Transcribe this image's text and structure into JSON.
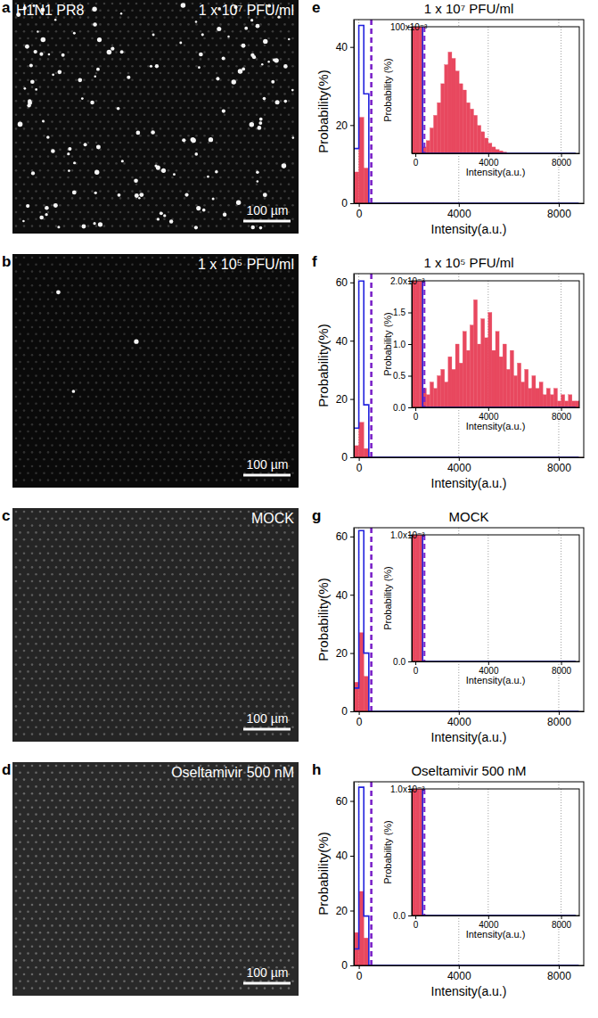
{
  "images": [
    {
      "panel": "a",
      "caption_left": "H1N1 PR8",
      "caption_right": "1 x 10⁷ PFU/ml",
      "scale_bar": "100 µm"
    },
    {
      "panel": "b",
      "caption_right": "1 x 10⁵ PFU/ml",
      "scale_bar": "100 µm"
    },
    {
      "panel": "c",
      "caption_right": "MOCK",
      "scale_bar": "100 µm"
    },
    {
      "panel": "d",
      "caption_right": "Oseltamivir 500 nM",
      "scale_bar": "100 µm"
    }
  ],
  "chart_data": [
    {
      "type": "histogram",
      "panel": "e",
      "title": "1 x 10⁷ PFU/ml",
      "x_label": "Intensity(a.u.)",
      "y_label": "Probability(%)",
      "bins": [
        -200,
        0,
        200,
        400,
        600,
        800,
        1000,
        1200,
        1400,
        1600,
        1800,
        2000,
        2200,
        2400,
        2600,
        2800,
        3000,
        3200,
        3400,
        3600,
        3800,
        4000,
        4200,
        4400,
        4600,
        4800,
        5000,
        5200,
        5400,
        5600,
        5800,
        6000,
        6200,
        6400,
        6600,
        6800,
        7000,
        7200,
        7400,
        7600,
        7800,
        8000,
        8200,
        8400,
        8600,
        8800,
        9000
      ],
      "series": [
        {
          "type": "bar",
          "color": "#e8485f",
          "values": [
            8,
            22,
            9,
            0.005,
            0.01,
            0.02,
            0.03,
            0.04,
            0.055,
            0.07,
            0.08,
            0.075,
            0.065,
            0.055,
            0.05,
            0.04,
            0.035,
            0.03,
            0.022,
            0.017,
            0.012,
            0.008,
            0.005,
            0.003,
            0.002,
            0.001,
            0,
            0,
            0,
            0,
            0,
            0,
            0,
            0,
            0,
            0,
            0,
            0,
            0,
            0,
            0,
            0,
            0,
            0,
            0,
            0
          ]
        },
        {
          "type": "line",
          "color": "#2222dd",
          "values": [
            14,
            45.5,
            28,
            0,
            0,
            0,
            0,
            0,
            0,
            0,
            0,
            0,
            0,
            0,
            0,
            0,
            0,
            0,
            0,
            0,
            0,
            0,
            0,
            0,
            0,
            0,
            0,
            0,
            0,
            0,
            0,
            0,
            0,
            0,
            0,
            0,
            0,
            0,
            0,
            0,
            0,
            0,
            0,
            0,
            0,
            0
          ]
        }
      ],
      "xlim": [
        -200,
        9000
      ],
      "ylim": [
        0,
        47
      ],
      "xticks": [
        0,
        4000,
        8000
      ],
      "yticks": [
        0,
        20,
        40
      ],
      "grid": true,
      "threshold": {
        "value": 500,
        "color": "#7a22c8",
        "line_style": "dashed"
      },
      "inset": {
        "x_label": "Intensity(a.u.)",
        "y_label": "Probability (%)",
        "xlim": [
          -200,
          9000
        ],
        "ylim": [
          0,
          0.1
        ],
        "xticks": [
          0,
          4000,
          8000
        ],
        "yticks": [
          {
            "value": 0.1,
            "label": "100x10⁻³"
          }
        ]
      }
    },
    {
      "type": "histogram",
      "panel": "f",
      "title": "1 x 10⁵ PFU/ml",
      "x_label": "Intensity(a.u.)",
      "y_label": "Probability(%)",
      "bins": [
        -200,
        0,
        200,
        400,
        600,
        800,
        1000,
        1200,
        1400,
        1600,
        1800,
        2000,
        2200,
        2400,
        2600,
        2800,
        3000,
        3200,
        3400,
        3600,
        3800,
        4000,
        4200,
        4400,
        4600,
        4800,
        5000,
        5200,
        5400,
        5600,
        5800,
        6000,
        6200,
        6400,
        6600,
        6800,
        7000,
        7200,
        7400,
        7600,
        7800,
        8000,
        8200,
        8400,
        8600,
        8800,
        9000
      ],
      "series": [
        {
          "type": "bar",
          "color": "#e8485f",
          "values": [
            4,
            12,
            3,
            0.0003,
            0.0002,
            0.0004,
            0.0003,
            0.0005,
            0.0006,
            0.0004,
            0.0008,
            0.0006,
            0.001,
            0.0007,
            0.0012,
            0.0009,
            0.0013,
            0.0017,
            0.001,
            0.0014,
            0.0011,
            0.0015,
            0.0009,
            0.0012,
            0.0008,
            0.001,
            0.0006,
            0.0009,
            0.0005,
            0.0007,
            0.0004,
            0.0006,
            0.0003,
            0.0005,
            0.0003,
            0.0004,
            0.0002,
            0.0003,
            0.0002,
            0.0003,
            0.0001,
            0.0002,
            0.0001,
            0.0002,
            0.0001,
            0.0001
          ]
        },
        {
          "type": "line",
          "color": "#2222dd",
          "values": [
            10,
            60.5,
            18,
            0,
            0,
            0,
            0,
            0,
            0,
            0,
            0,
            0,
            0,
            0,
            0,
            0,
            0,
            0,
            0,
            0,
            0,
            0,
            0,
            0,
            0,
            0,
            0,
            0,
            0,
            0,
            0,
            0,
            0,
            0,
            0,
            0,
            0,
            0,
            0,
            0,
            0,
            0,
            0,
            0,
            0,
            0
          ]
        }
      ],
      "xlim": [
        -200,
        9000
      ],
      "ylim": [
        0,
        63
      ],
      "xticks": [
        0,
        4000,
        8000
      ],
      "yticks": [
        0,
        20,
        40,
        60
      ],
      "grid": true,
      "threshold": {
        "value": 500,
        "color": "#7a22c8",
        "line_style": "dashed"
      },
      "inset": {
        "x_label": "Intensity(a.u.)",
        "y_label": "Probability (%)",
        "xlim": [
          -200,
          9000
        ],
        "ylim": [
          0,
          0.002
        ],
        "xticks": [
          0,
          4000,
          8000
        ],
        "yticks": [
          {
            "value": 0,
            "label": "0.0"
          },
          {
            "value": 0.0005,
            "label": "0.5"
          },
          {
            "value": 0.001,
            "label": "1.0"
          },
          {
            "value": 0.0015,
            "label": "1.5"
          },
          {
            "value": 0.002,
            "label": "2.0x10⁻³"
          }
        ]
      }
    },
    {
      "type": "histogram",
      "panel": "g",
      "title": "MOCK",
      "x_label": "Intensity(a.u.)",
      "y_label": "Probability(%)",
      "bins": [
        -200,
        0,
        200,
        400,
        600,
        800,
        1000,
        1200,
        1400,
        1600,
        1800,
        2000,
        2200,
        2400,
        2600,
        2800,
        3000,
        3200,
        3400,
        3600,
        3800,
        4000,
        4200,
        4400,
        4600,
        4800,
        5000,
        5200,
        5400,
        5600,
        5800,
        6000,
        6200,
        6400,
        6600,
        6800,
        7000,
        7200,
        7400,
        7600,
        7800,
        8000,
        8200,
        8400,
        8600,
        8800,
        9000
      ],
      "series": [
        {
          "type": "bar",
          "color": "#e8485f",
          "values": [
            10,
            27,
            12,
            0,
            0,
            0,
            0,
            0,
            0,
            0,
            0,
            0,
            0,
            0,
            0,
            0,
            0,
            0,
            0,
            0,
            0,
            0,
            0,
            0,
            0,
            0,
            0,
            0,
            0,
            0,
            0,
            0,
            0,
            0,
            0,
            0,
            0,
            0,
            0,
            0,
            0,
            0,
            0,
            0,
            0,
            0
          ]
        },
        {
          "type": "line",
          "color": "#2222dd",
          "values": [
            8,
            62,
            20,
            0,
            0,
            0,
            0,
            0,
            0,
            0,
            0,
            0,
            0,
            0,
            0,
            0,
            0,
            0,
            0,
            0,
            0,
            0,
            0,
            0,
            0,
            0,
            0,
            0,
            0,
            0,
            0,
            0,
            0,
            0,
            0,
            0,
            0,
            0,
            0,
            0,
            0,
            0,
            0,
            0,
            0,
            0
          ]
        }
      ],
      "xlim": [
        -200,
        9000
      ],
      "ylim": [
        0,
        63
      ],
      "xticks": [
        0,
        4000,
        8000
      ],
      "yticks": [
        0,
        20,
        40,
        60
      ],
      "grid": true,
      "threshold": {
        "value": 500,
        "color": "#7a22c8",
        "line_style": "dashed"
      },
      "inset": {
        "x_label": "Intensity(a.u.)",
        "y_label": "Probability (%)",
        "xlim": [
          -200,
          9000
        ],
        "ylim": [
          0,
          0.001
        ],
        "xticks": [
          0,
          4000,
          8000
        ],
        "yticks": [
          {
            "value": 0,
            "label": "0.0"
          },
          {
            "value": 0.001,
            "label": "1.0x10⁻³"
          }
        ]
      }
    },
    {
      "type": "histogram",
      "panel": "h",
      "title": "Oseltamivir 500 nM",
      "x_label": "Intensity(a.u.)",
      "y_label": "Probability(%)",
      "bins": [
        -200,
        0,
        200,
        400,
        600,
        800,
        1000,
        1200,
        1400,
        1600,
        1800,
        2000,
        2200,
        2400,
        2600,
        2800,
        3000,
        3200,
        3400,
        3600,
        3800,
        4000,
        4200,
        4400,
        4600,
        4800,
        5000,
        5200,
        5400,
        5600,
        5800,
        6000,
        6200,
        6400,
        6600,
        6800,
        7000,
        7200,
        7400,
        7600,
        7800,
        8000,
        8200,
        8400,
        8600,
        8800,
        9000
      ],
      "series": [
        {
          "type": "bar",
          "color": "#e8485f",
          "values": [
            12,
            27,
            10,
            0,
            0,
            0,
            0,
            0,
            0,
            0,
            0,
            0,
            0,
            0,
            0,
            0,
            0,
            0,
            0,
            0,
            0,
            0,
            0,
            0,
            0,
            0,
            0,
            0,
            0,
            0,
            0,
            0,
            0,
            0,
            0,
            0,
            0,
            0,
            0,
            0,
            0,
            0,
            0,
            0,
            0,
            0
          ]
        },
        {
          "type": "line",
          "color": "#2222dd",
          "values": [
            6,
            65,
            18,
            0,
            0,
            0,
            0,
            0,
            0,
            0,
            0,
            0,
            0,
            0,
            0,
            0,
            0,
            0,
            0,
            0,
            0,
            0,
            0,
            0,
            0,
            0,
            0,
            0,
            0,
            0,
            0,
            0,
            0,
            0,
            0,
            0,
            0,
            0,
            0,
            0,
            0,
            0,
            0,
            0,
            0,
            0
          ]
        }
      ],
      "xlim": [
        -200,
        9000
      ],
      "ylim": [
        0,
        67
      ],
      "xticks": [
        0,
        4000,
        8000
      ],
      "yticks": [
        0,
        20,
        40,
        60
      ],
      "grid": true,
      "threshold": {
        "value": 500,
        "color": "#7a22c8",
        "line_style": "dashed"
      },
      "inset": {
        "x_label": "Intensity(a.u.)",
        "y_label": "Probability (%)",
        "xlim": [
          -200,
          9000
        ],
        "ylim": [
          0,
          0.001
        ],
        "xticks": [
          0,
          4000,
          8000
        ],
        "yticks": [
          {
            "value": 0,
            "label": "0.0"
          },
          {
            "value": 0.001,
            "label": "1.0x10⁻³"
          }
        ]
      }
    }
  ]
}
